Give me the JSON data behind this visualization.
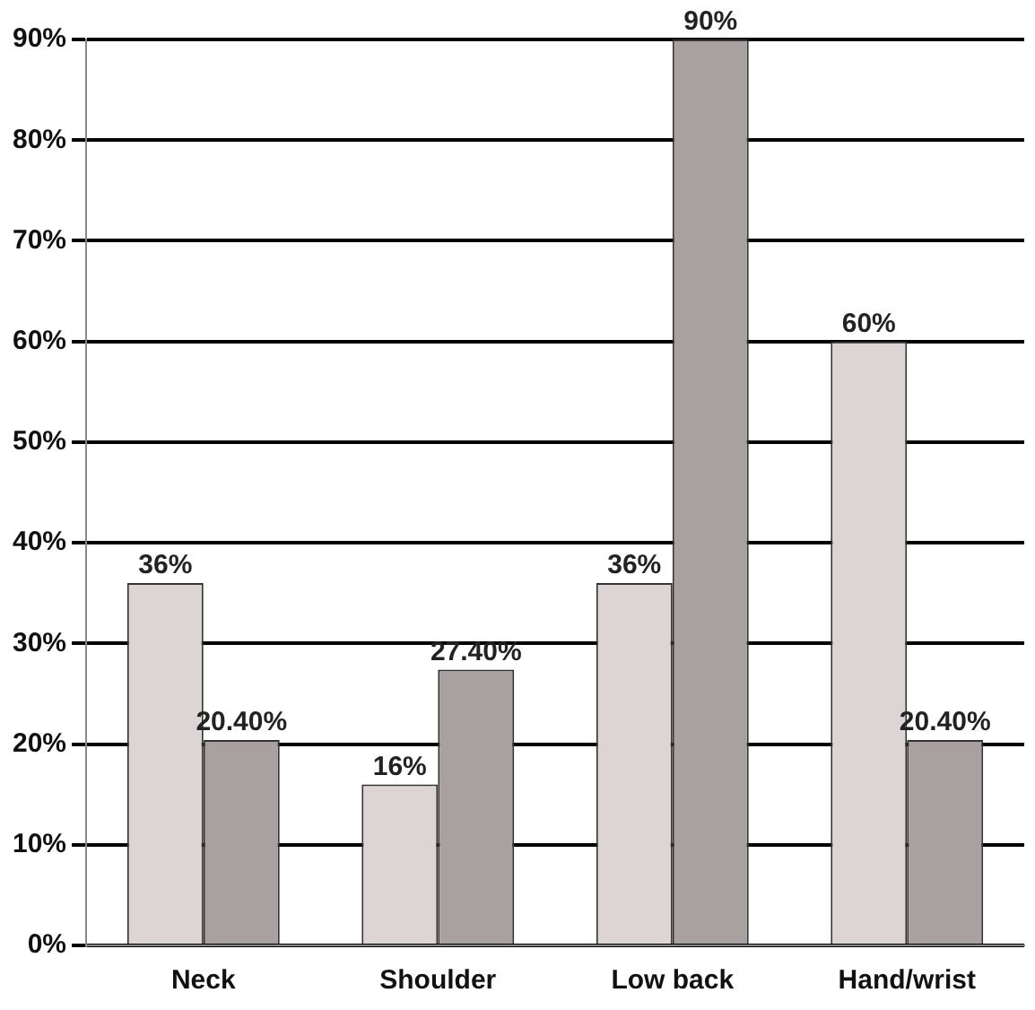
{
  "chart_data": {
    "type": "bar",
    "categories": [
      "Neck",
      "Shoulder",
      "Low back",
      "Hand/wrist"
    ],
    "series": [
      {
        "color": "#ddd5d3",
        "values": [
          36,
          16,
          36,
          60
        ],
        "value_labels": [
          "36%",
          "16%",
          "36%",
          "60%"
        ]
      },
      {
        "color": "#a9a19f",
        "values": [
          20.4,
          27.4,
          90,
          20.4
        ],
        "value_labels": [
          "20.40%",
          "27.40%",
          "90%",
          "20.40%"
        ]
      }
    ],
    "ylim": [
      0,
      90
    ],
    "yticks": [
      {
        "value": 0,
        "label": "0%"
      },
      {
        "value": 10,
        "label": "10%"
      },
      {
        "value": 20,
        "label": "20%"
      },
      {
        "value": 30,
        "label": "30%"
      },
      {
        "value": 40,
        "label": "40%"
      },
      {
        "value": 50,
        "label": "50%"
      },
      {
        "value": 60,
        "label": "60%"
      },
      {
        "value": 70,
        "label": "70%"
      },
      {
        "value": 80,
        "label": "80%"
      },
      {
        "value": 90,
        "label": "90%"
      }
    ],
    "grid": "y",
    "legend": false
  }
}
